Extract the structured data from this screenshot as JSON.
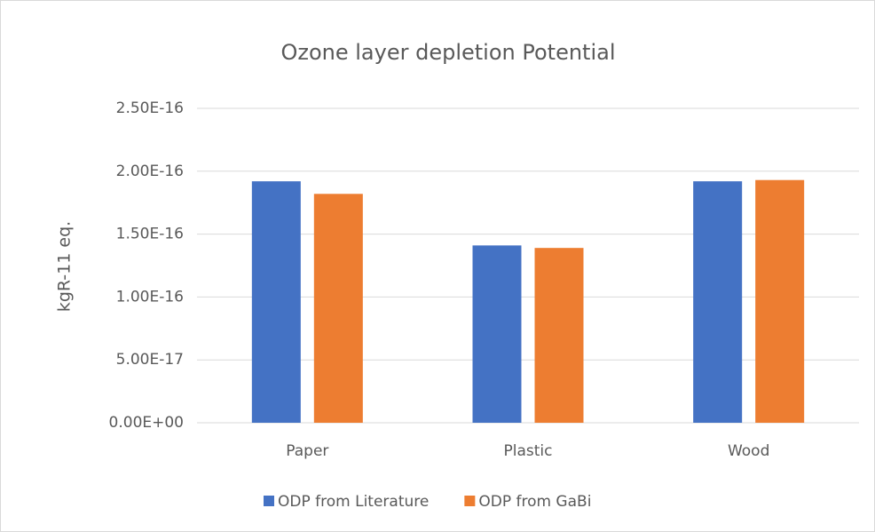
{
  "chart_data": {
    "type": "bar",
    "title": "Ozone layer depletion Potential",
    "y_label": "kgR-11 eq.",
    "categories": [
      "Paper",
      "Plastic",
      "Wood"
    ],
    "series": [
      {
        "name": "ODP from Literature",
        "color": "#4472c4",
        "values": [
          1.92e-16,
          1.41e-16,
          1.92e-16
        ]
      },
      {
        "name": "ODP from GaBi",
        "color": "#ed7d31",
        "values": [
          1.82e-16,
          1.39e-16,
          1.93e-16
        ]
      }
    ],
    "ylim": [
      0,
      2.5e-16
    ],
    "yticks": [
      {
        "value": 0,
        "label": "0.00E+00"
      },
      {
        "value": 5e-17,
        "label": "5.00E-17"
      },
      {
        "value": 1e-16,
        "label": "1.00E-16"
      },
      {
        "value": 1.5e-16,
        "label": "1.50E-16"
      },
      {
        "value": 2e-16,
        "label": "2.00E-16"
      },
      {
        "value": 2.5e-16,
        "label": "2.50E-16"
      }
    ],
    "grid": true,
    "legend": "bottom"
  }
}
